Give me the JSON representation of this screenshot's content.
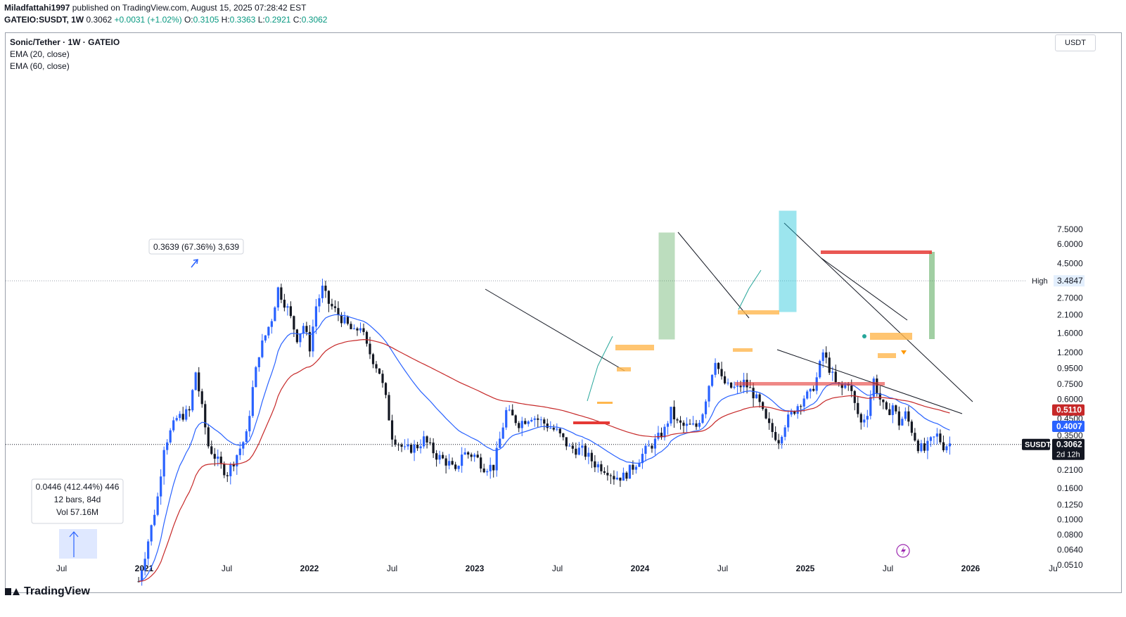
{
  "header": {
    "author": "Miladfattahi1997",
    "published_text": "published on TradingView.com, August 15, 2025 07:28:42 EST",
    "symbol": "GATEIO:SUSDT, 1W",
    "price": "0.3062",
    "change": "+0.0031 (+1.02%)",
    "o_label": "O:",
    "o_value": "0.3105",
    "h_label": "H:",
    "h_value": "0.3363",
    "l_label": "L:",
    "l_value": "0.2921",
    "c_label": "C:",
    "c_value": "0.3062"
  },
  "legend": {
    "title": "Sonic/Tether · 1W · GATEIO",
    "ema20": "EMA (20, close)",
    "ema60": "EMA (60, close)"
  },
  "unit": "USDT",
  "footer": {
    "brand": "TradingView"
  },
  "chart_data": {
    "type": "candlestick",
    "scale": "log",
    "ylim": [
      0.042,
      9.5
    ],
    "y_ticks": [
      "7.5000",
      "6.0000",
      "4.5000",
      "2.7000",
      "2.1000",
      "1.6000",
      "1.2000",
      "0.9500",
      "0.7500",
      "0.6000",
      "0.4500",
      "0.3500",
      "0.2100",
      "0.1600",
      "0.1250",
      "0.1000",
      "0.0800",
      "0.0640",
      "0.0510"
    ],
    "x_ticks": [
      "Jul",
      "2021",
      "Jul",
      "2022",
      "Jul",
      "2023",
      "Jul",
      "2024",
      "Jul",
      "2025",
      "Jul",
      "2026",
      "Ju"
    ],
    "series": [
      {
        "name": "EMA (20, close)",
        "color": "#2962ff"
      },
      {
        "name": "EMA (60, close)",
        "color": "#c62828"
      }
    ],
    "price_labels": [
      {
        "label": "High",
        "value": "3.4847"
      },
      {
        "label": "",
        "value": "0.5110"
      },
      {
        "label": "",
        "value": "0.4007"
      },
      {
        "label": "SUSDT",
        "value": "0.3062",
        "countdown": "2d 12h"
      }
    ],
    "annotations": [
      {
        "text": "0.3639 (67.36%) 3,639"
      },
      {
        "lines": [
          "0.0446 (412.44%) 446",
          "12 bars, 84d",
          "Vol 57.16M"
        ]
      }
    ],
    "last_price": 0.3062,
    "high": 3.4847
  },
  "colors": {
    "up": "#2962ff",
    "down": "#131722",
    "ema20": "#2962ff",
    "ema60": "#c62828",
    "red_zone": "#e53935",
    "orange_zone": "#ffb74d",
    "green_zone": "#43a047",
    "cyan_zone": "#26c6da"
  }
}
